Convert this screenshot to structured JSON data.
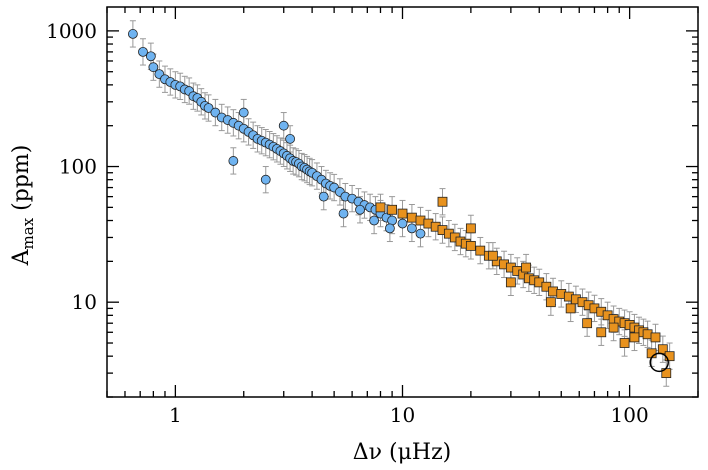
{
  "chart_data": {
    "type": "scatter",
    "title": "",
    "xlabel": "Δν (μHz)",
    "ylabel": "A_max (ppm)",
    "xscale": "log",
    "yscale": "log",
    "xlim": [
      0.5,
      200
    ],
    "ylim": [
      2,
      1500
    ],
    "x_ticks": [
      1,
      10,
      100
    ],
    "x_tick_labels": [
      "1",
      "10",
      "100"
    ],
    "y_ticks": [
      10,
      100,
      1000
    ],
    "y_tick_labels": [
      "10",
      "100",
      "1000"
    ],
    "grid": false,
    "legend": "none",
    "series": [
      {
        "marker": "circle",
        "color": "#6fb3f0",
        "description_note": "",
        "x": [
          0.65,
          0.72,
          0.78,
          0.8,
          0.85,
          0.9,
          0.95,
          1.0,
          1.05,
          1.1,
          1.15,
          1.2,
          1.25,
          1.3,
          1.35,
          1.4,
          1.5,
          1.6,
          1.7,
          1.8,
          1.9,
          2.0,
          2.1,
          2.2,
          2.3,
          2.4,
          2.5,
          2.6,
          2.7,
          2.8,
          2.9,
          3.0,
          3.1,
          3.2,
          3.3,
          3.4,
          3.5,
          3.6,
          3.7,
          3.8,
          3.9,
          4.0,
          4.2,
          4.4,
          4.6,
          4.8,
          5.0,
          5.3,
          5.6,
          6.0,
          6.4,
          6.8,
          7.2,
          7.6,
          8.0,
          8.5,
          9.0,
          10.0,
          11.0,
          12.0,
          2.5,
          1.8,
          3.2,
          4.5,
          5.5,
          6.5,
          7.5,
          8.8,
          3.0,
          2.0
        ],
        "y": [
          950,
          700,
          650,
          540,
          480,
          440,
          420,
          400,
          390,
          370,
          360,
          330,
          320,
          300,
          280,
          270,
          250,
          230,
          220,
          210,
          200,
          190,
          180,
          170,
          160,
          155,
          150,
          145,
          140,
          135,
          130,
          125,
          120,
          115,
          110,
          108,
          105,
          100,
          98,
          95,
          92,
          90,
          85,
          80,
          75,
          72,
          70,
          65,
          60,
          58,
          55,
          52,
          50,
          48,
          45,
          42,
          40,
          38,
          35,
          32,
          80,
          110,
          160,
          60,
          45,
          48,
          40,
          35,
          200,
          250
        ]
      },
      {
        "marker": "square",
        "color": "#e8921e",
        "x": [
          8,
          9,
          10,
          11,
          12,
          13,
          14,
          15,
          16,
          17,
          18,
          19,
          20,
          22,
          24,
          26,
          28,
          30,
          32,
          34,
          36,
          38,
          40,
          43,
          46,
          50,
          54,
          58,
          62,
          66,
          70,
          75,
          80,
          85,
          90,
          95,
          100,
          105,
          110,
          115,
          120,
          130,
          140,
          150,
          15,
          20,
          25,
          30,
          35,
          45,
          55,
          65,
          75,
          85,
          95,
          105,
          125,
          145
        ],
        "y": [
          50,
          48,
          45,
          42,
          40,
          38,
          36,
          34,
          32,
          30,
          28,
          27,
          26,
          24,
          22,
          20,
          19,
          18,
          17,
          16,
          15,
          14.5,
          14,
          13,
          12,
          11.5,
          11,
          10.5,
          10,
          9.5,
          9,
          8.5,
          8,
          7.5,
          7.2,
          7,
          6.8,
          6.5,
          6.2,
          6,
          5.8,
          5.5,
          4.5,
          4,
          55,
          35,
          22,
          14,
          18,
          10,
          9,
          7,
          6,
          6.5,
          5,
          5.5,
          4.2,
          3.0
        ]
      }
    ],
    "annotations": [
      {
        "type": "open-circle",
        "x": 135,
        "y": 3.6
      }
    ]
  }
}
